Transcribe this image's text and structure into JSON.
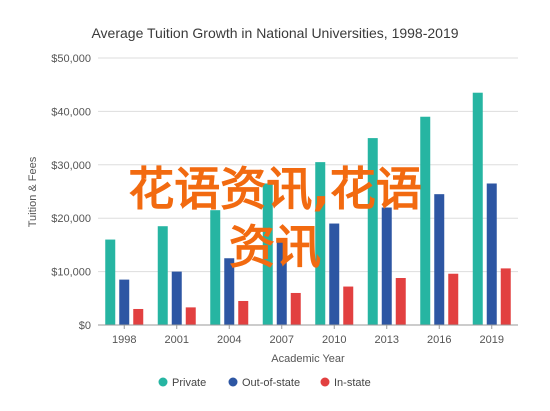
{
  "chart_data": {
    "type": "bar",
    "title": "Average Tuition Growth in National Universities, 1998-2019",
    "xlabel": "Academic Year",
    "ylabel": "Tuition & Fees",
    "categories": [
      "1998",
      "2001",
      "2004",
      "2007",
      "2010",
      "2013",
      "2016",
      "2019"
    ],
    "y_ticks": [
      "$0",
      "$10,000",
      "$20,000",
      "$30,000",
      "$40,000",
      "$50,000"
    ],
    "ylim": [
      0,
      50000
    ],
    "grid": true,
    "legend_position": "bottom",
    "series": [
      {
        "name": "Private",
        "color": "#26b5a2",
        "values": [
          16000,
          18500,
          21500,
          26500,
          30500,
          35000,
          39000,
          43500
        ]
      },
      {
        "name": "Out-of-state",
        "color": "#2d56a3",
        "values": [
          8500,
          10000,
          12500,
          16000,
          19000,
          22000,
          24500,
          26500
        ]
      },
      {
        "name": "In-state",
        "color": "#e24040",
        "values": [
          3000,
          3300,
          4500,
          6000,
          7200,
          8800,
          9600,
          10600
        ]
      }
    ]
  },
  "overlay": {
    "line1": "花语资讯,花语",
    "line2": "资讯",
    "color": "#f26a10"
  }
}
